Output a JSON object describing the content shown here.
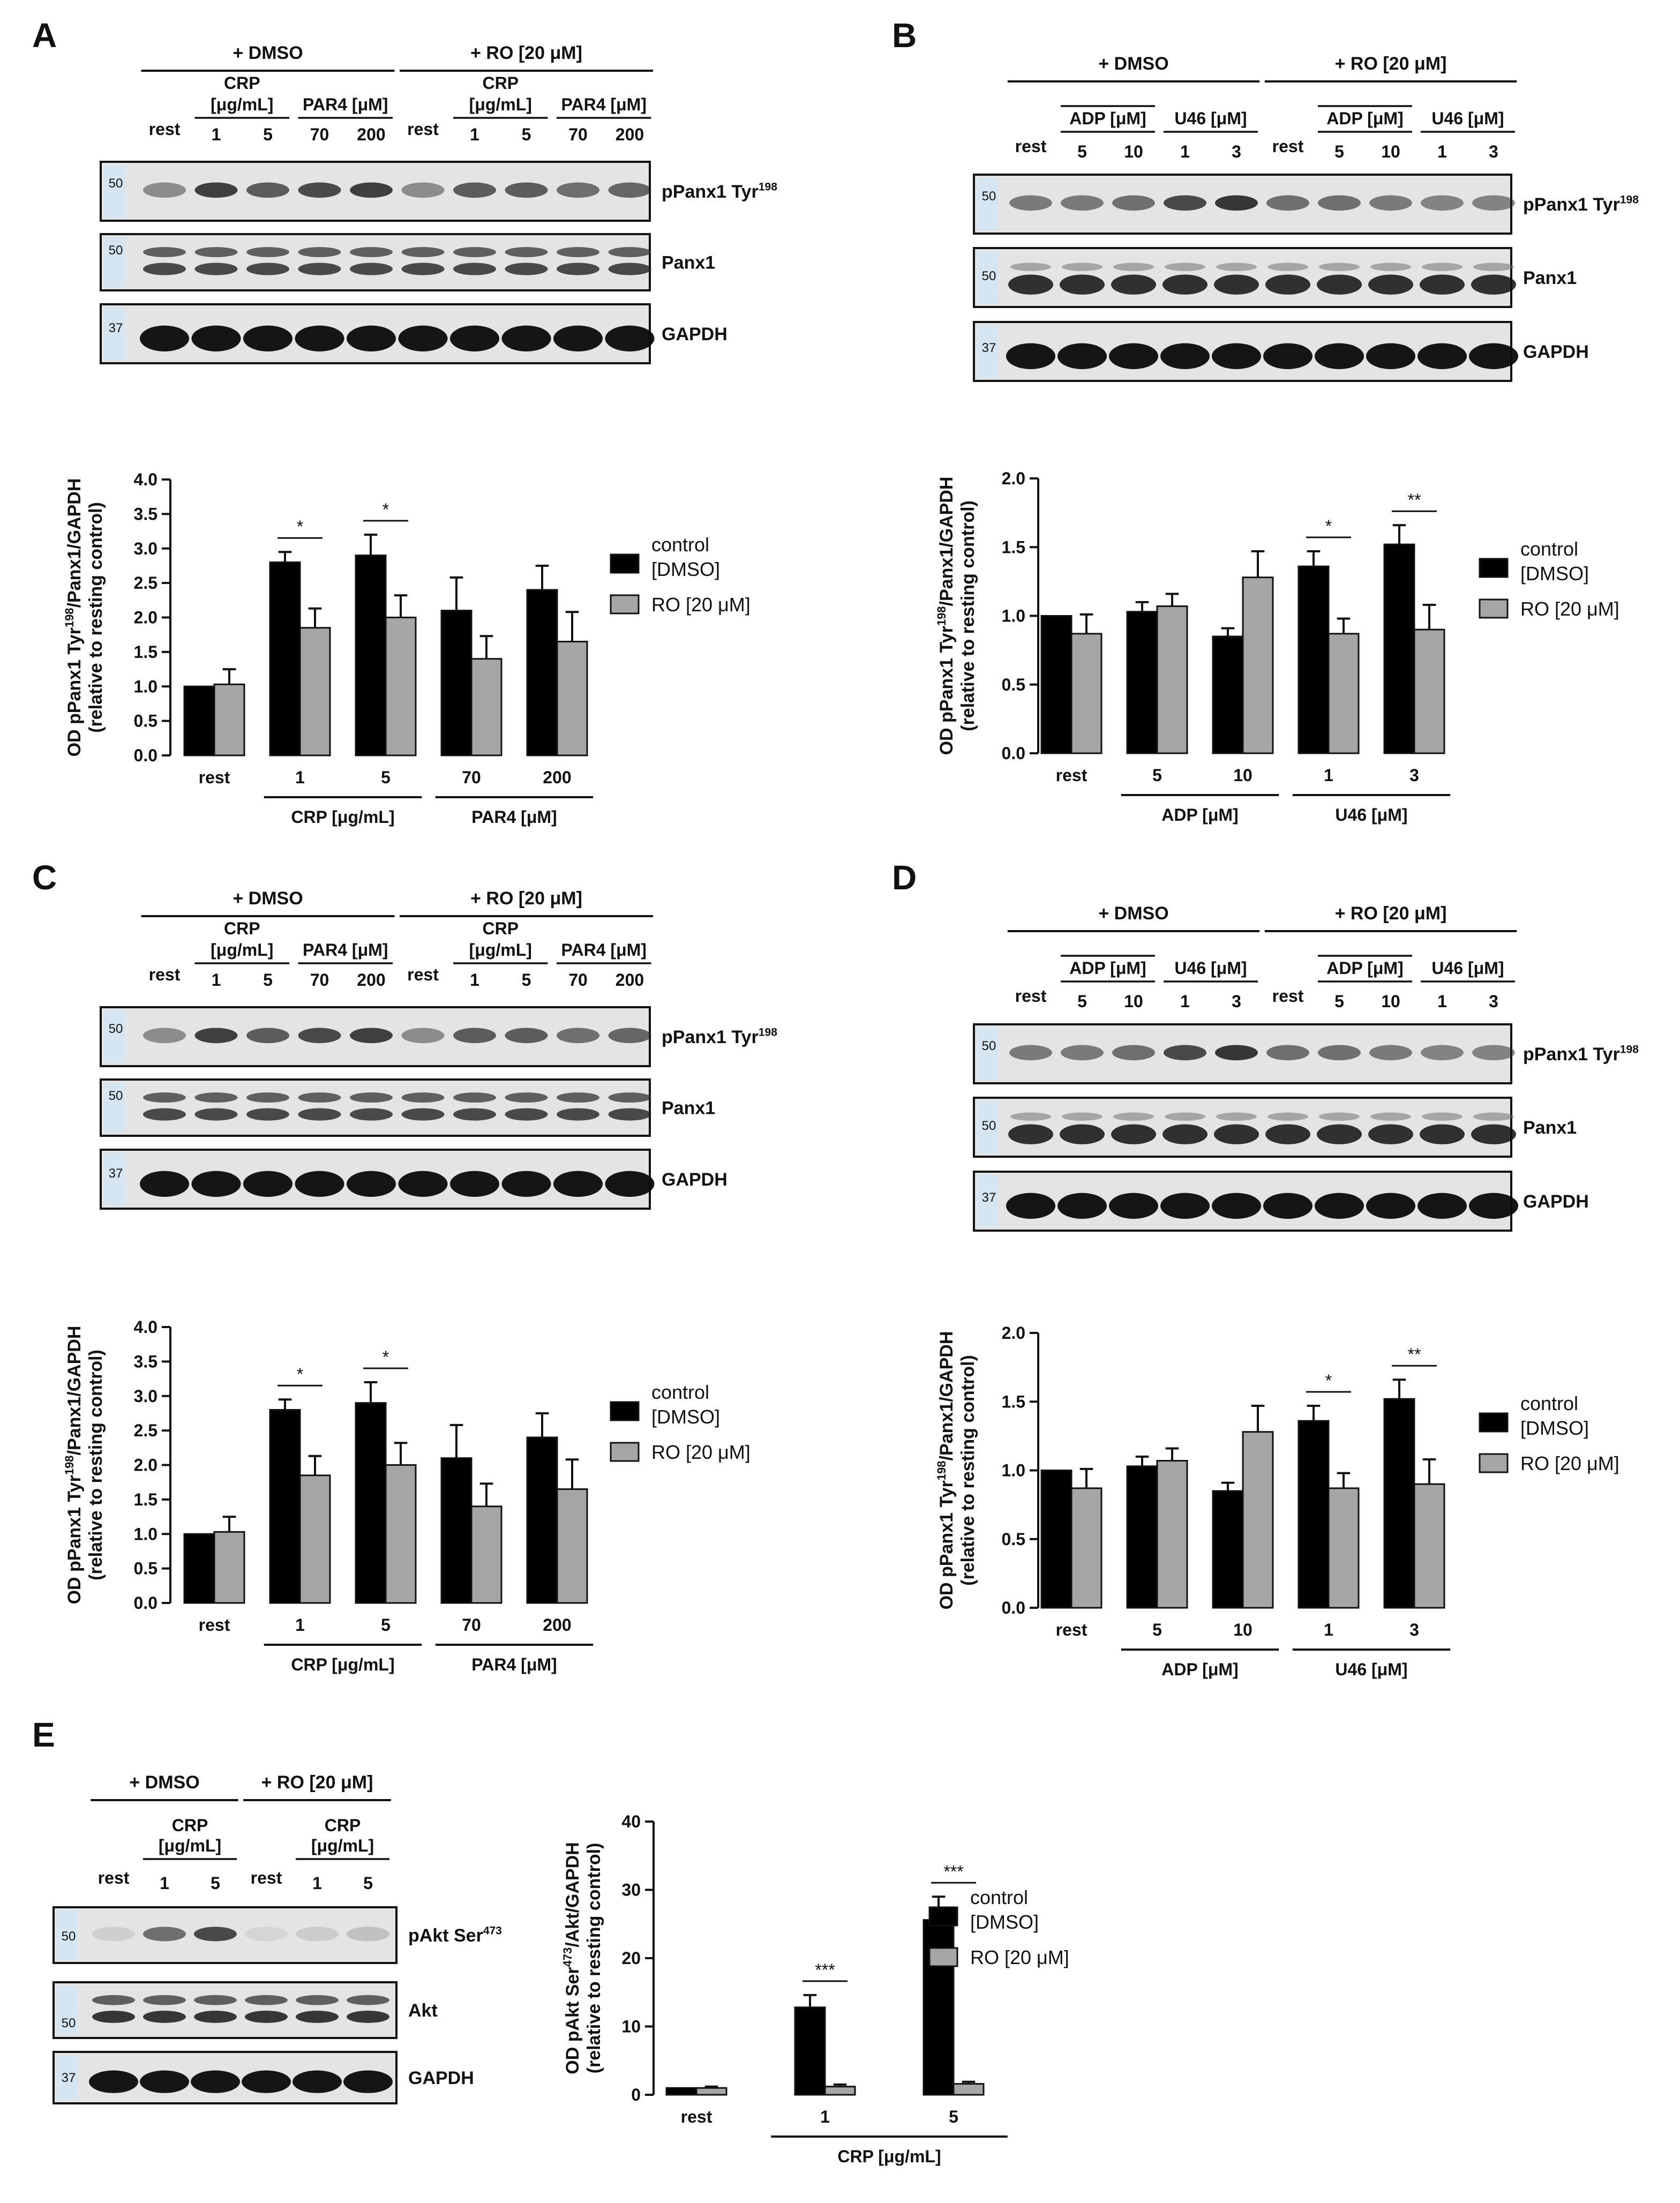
{
  "legend": {
    "control_l1": "control",
    "control_l2": "[DMSO]",
    "ro": "RO [20 μM]",
    "control_color": "#000000",
    "ro_color": "#a6a6a6"
  },
  "panels": [
    {
      "letter": "A",
      "type": "crp_par4",
      "blot": {
        "dmso": "+ DMSO",
        "ro": "+ RO [20 μM]",
        "crp_l1": "CRP",
        "crp_l2": "[μg/mL]",
        "par4": "PAR4 [μM]",
        "lanes": [
          "rest",
          "1",
          "5",
          "70",
          "200",
          "rest",
          "1",
          "5",
          "70",
          "200"
        ],
        "bands": [
          {
            "label": "pPanx1 Tyr",
            "sup": "198",
            "mw": "50"
          },
          {
            "label": "Panx1",
            "sup": "",
            "mw": "50"
          },
          {
            "label": "GAPDH",
            "sup": "",
            "mw": "37"
          }
        ]
      },
      "chart": {
        "ylabel_l1": "OD pPanx1 Tyr",
        "ylabel_sup": "198",
        "ylabel_l1b": "/Panx1/GAPDH",
        "ylabel_l2": "(relative to resting control)",
        "group_labels": [
          {
            "text": "CRP [μg/mL]",
            "from": 1,
            "to": 2
          },
          {
            "text": "PAR4 [μM]",
            "from": 3,
            "to": 4
          }
        ]
      }
    },
    {
      "letter": "B",
      "type": "adp_u46",
      "blot": {
        "dmso": "+ DMSO",
        "ro": "+ RO [20 μM]",
        "adp": "ADP [μM]",
        "u46": "U46 [μM]",
        "lanes": [
          "rest",
          "5",
          "10",
          "1",
          "3",
          "rest",
          "5",
          "10",
          "1",
          "3"
        ],
        "bands": [
          {
            "label": "pPanx1 Tyr",
            "sup": "198",
            "mw": "50"
          },
          {
            "label": "Panx1",
            "sup": "",
            "mw": "50"
          },
          {
            "label": "GAPDH",
            "sup": "",
            "mw": "37"
          }
        ]
      },
      "chart": {
        "ylabel_l1": "OD pPanx1 Tyr",
        "ylabel_sup": "198",
        "ylabel_l1b": "/Panx1/GAPDH",
        "ylabel_l2": "(relative to resting control)",
        "group_labels": [
          {
            "text": "ADP [μM]",
            "from": 1,
            "to": 2
          },
          {
            "text": "U46 [μM]",
            "from": 3,
            "to": 4
          }
        ]
      }
    },
    {
      "letter": "C",
      "type": "crp_par4",
      "blot": {
        "dmso": "+ DMSO",
        "ro": "+ RO [20 μM]",
        "crp_l1": "CRP",
        "crp_l2": "[μg/mL]",
        "par4": "PAR4 [μM]",
        "lanes": [
          "rest",
          "1",
          "5",
          "70",
          "200",
          "rest",
          "1",
          "5",
          "70",
          "200"
        ],
        "bands": [
          {
            "label": "pPanx1 Tyr",
            "sup": "198",
            "mw": "50"
          },
          {
            "label": "Panx1",
            "sup": "",
            "mw": "50"
          },
          {
            "label": "GAPDH",
            "sup": "",
            "mw": "37"
          }
        ]
      },
      "chart": {
        "ylabel_l1": "OD pPanx1 Tyr",
        "ylabel_sup": "198",
        "ylabel_l1b": "/Panx1/GAPDH",
        "ylabel_l2": "(relative to resting control)",
        "group_labels": [
          {
            "text": "CRP [μg/mL]",
            "from": 1,
            "to": 2
          },
          {
            "text": "PAR4 [μM]",
            "from": 3,
            "to": 4
          }
        ]
      }
    },
    {
      "letter": "D",
      "type": "adp_u46",
      "blot": {
        "dmso": "+ DMSO",
        "ro": "+ RO [20 μM]",
        "adp": "ADP [μM]",
        "u46": "U46 [μM]",
        "lanes": [
          "rest",
          "5",
          "10",
          "1",
          "3",
          "rest",
          "5",
          "10",
          "1",
          "3"
        ],
        "bands": [
          {
            "label": "pPanx1 Tyr",
            "sup": "198",
            "mw": "50"
          },
          {
            "label": "Panx1",
            "sup": "",
            "mw": "50"
          },
          {
            "label": "GAPDH",
            "sup": "",
            "mw": "37"
          }
        ]
      },
      "chart": {
        "ylabel_l1": "OD pPanx1 Tyr",
        "ylabel_sup": "198",
        "ylabel_l1b": "/Panx1/GAPDH",
        "ylabel_l2": "(relative to resting control)",
        "group_labels": [
          {
            "text": "ADP [μM]",
            "from": 1,
            "to": 2
          },
          {
            "text": "U46 [μM]",
            "from": 3,
            "to": 4
          }
        ]
      }
    },
    {
      "letter": "E",
      "type": "akt",
      "blot": {
        "dmso": "+ DMSO",
        "ro": "+ RO [20 μM]",
        "crp_l1": "CRP",
        "crp_l2": "[μg/mL]",
        "lanes": [
          "rest",
          "1",
          "5",
          "rest",
          "1",
          "5"
        ],
        "bands": [
          {
            "label": "pAkt Ser",
            "sup": "473",
            "mw": "50"
          },
          {
            "label": "Akt",
            "sup": "",
            "mw": "50"
          },
          {
            "label": "GAPDH",
            "sup": "",
            "mw": "37"
          }
        ]
      },
      "chart": {
        "ylabel_l1": "OD pAkt Ser",
        "ylabel_sup": "473",
        "ylabel_l1b": "/Akt/GAPDH",
        "ylabel_l2": "(relative to resting control)",
        "group_labels": [
          {
            "text": "CRP [μg/mL]",
            "from": 1,
            "to": 2
          }
        ]
      }
    }
  ],
  "chart_data": [
    {
      "panel": "A",
      "type": "bar",
      "categories": [
        "rest",
        "1",
        "5",
        "70",
        "200"
      ],
      "ylim": [
        0,
        4.0
      ],
      "yticks": [
        0.0,
        0.5,
        1.0,
        1.5,
        2.0,
        2.5,
        3.0,
        3.5,
        4.0
      ],
      "ytick_decimals": 1,
      "series": [
        {
          "name": "control [DMSO]",
          "values": [
            1.0,
            2.8,
            2.9,
            2.1,
            2.4
          ],
          "errors": [
            0.0,
            0.15,
            0.3,
            0.48,
            0.35
          ]
        },
        {
          "name": "RO [20 μM]",
          "values": [
            1.03,
            1.85,
            2.0,
            1.4,
            1.65
          ],
          "errors": [
            0.22,
            0.28,
            0.32,
            0.33,
            0.43
          ]
        }
      ],
      "significance": [
        {
          "category": 1,
          "label": "*"
        },
        {
          "category": 2,
          "label": "*"
        }
      ]
    },
    {
      "panel": "B",
      "type": "bar",
      "categories": [
        "rest",
        "5",
        "10",
        "1",
        "3"
      ],
      "ylim": [
        0,
        2.0
      ],
      "yticks": [
        0.0,
        0.5,
        1.0,
        1.5,
        2.0
      ],
      "ytick_decimals": 1,
      "series": [
        {
          "name": "control [DMSO]",
          "values": [
            1.0,
            1.03,
            0.85,
            1.36,
            1.52
          ],
          "errors": [
            0.0,
            0.07,
            0.06,
            0.11,
            0.14
          ]
        },
        {
          "name": "RO [20 μM]",
          "values": [
            0.87,
            1.07,
            1.28,
            0.87,
            0.9
          ],
          "errors": [
            0.14,
            0.09,
            0.19,
            0.11,
            0.18
          ]
        }
      ],
      "significance": [
        {
          "category": 3,
          "label": "*"
        },
        {
          "category": 4,
          "label": "**"
        }
      ]
    },
    {
      "panel": "C",
      "type": "bar",
      "categories": [
        "rest",
        "1",
        "5",
        "70",
        "200"
      ],
      "ylim": [
        0,
        4.0
      ],
      "yticks": [
        0.0,
        0.5,
        1.0,
        1.5,
        2.0,
        2.5,
        3.0,
        3.5,
        4.0
      ],
      "ytick_decimals": 1,
      "series": [
        {
          "name": "control [DMSO]",
          "values": [
            1.0,
            2.8,
            2.9,
            2.1,
            2.4
          ],
          "errors": [
            0.0,
            0.15,
            0.3,
            0.48,
            0.35
          ]
        },
        {
          "name": "RO [20 μM]",
          "values": [
            1.03,
            1.85,
            2.0,
            1.4,
            1.65
          ],
          "errors": [
            0.22,
            0.28,
            0.32,
            0.33,
            0.43
          ]
        }
      ],
      "significance": [
        {
          "category": 1,
          "label": "*"
        },
        {
          "category": 2,
          "label": "*"
        }
      ]
    },
    {
      "panel": "D",
      "type": "bar",
      "categories": [
        "rest",
        "5",
        "10",
        "1",
        "3"
      ],
      "ylim": [
        0,
        2.0
      ],
      "yticks": [
        0.0,
        0.5,
        1.0,
        1.5,
        2.0
      ],
      "ytick_decimals": 1,
      "series": [
        {
          "name": "control [DMSO]",
          "values": [
            1.0,
            1.03,
            0.85,
            1.36,
            1.52
          ],
          "errors": [
            0.0,
            0.07,
            0.06,
            0.11,
            0.14
          ]
        },
        {
          "name": "RO [20 μM]",
          "values": [
            0.87,
            1.07,
            1.28,
            0.87,
            0.9
          ],
          "errors": [
            0.14,
            0.09,
            0.19,
            0.11,
            0.18
          ]
        }
      ],
      "significance": [
        {
          "category": 3,
          "label": "*"
        },
        {
          "category": 4,
          "label": "**"
        }
      ]
    },
    {
      "panel": "E",
      "type": "bar",
      "categories": [
        "rest",
        "1",
        "5"
      ],
      "ylim": [
        0,
        40
      ],
      "yticks": [
        0,
        10,
        20,
        30,
        40
      ],
      "ytick_decimals": 0,
      "series": [
        {
          "name": "control [DMSO]",
          "values": [
            1.0,
            12.8,
            25.6
          ],
          "errors": [
            0.0,
            1.8,
            3.4
          ]
        },
        {
          "name": "RO [20 μM]",
          "values": [
            1.0,
            1.2,
            1.6
          ],
          "errors": [
            0.2,
            0.3,
            0.3
          ]
        }
      ],
      "significance": [
        {
          "category": 1,
          "label": "***"
        },
        {
          "category": 2,
          "label": "***"
        }
      ]
    }
  ]
}
